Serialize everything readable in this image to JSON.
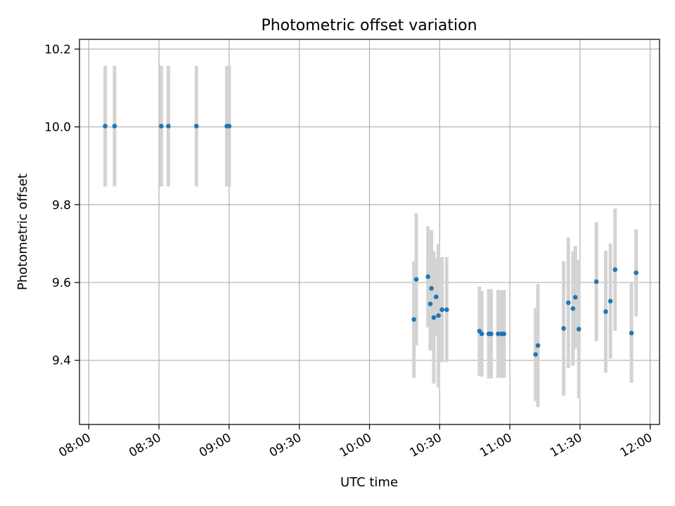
{
  "chart_data": {
    "type": "scatter",
    "title": "Photometric offset variation",
    "xlabel": "UTC time",
    "ylabel": "Photometric offset",
    "x_ticks": [
      "08:00",
      "08:30",
      "09:00",
      "09:30",
      "10:00",
      "10:30",
      "11:00",
      "11:30",
      "12:00"
    ],
    "y_ticks": [
      "9.4",
      "9.6",
      "9.8",
      "10.0",
      "10.2"
    ],
    "xlim": [
      "07:56",
      "12:04"
    ],
    "ylim": [
      9.235,
      10.225
    ],
    "grid": true,
    "colors": {
      "point": "#1f77b4",
      "errorbar": "#d3d3d3",
      "grid": "#b0b0b0"
    },
    "points": [
      {
        "x": "08:07",
        "y": 10.002,
        "err": 0.155
      },
      {
        "x": "08:11",
        "y": 10.002,
        "err": 0.155
      },
      {
        "x": "08:31",
        "y": 10.002,
        "err": 0.155
      },
      {
        "x": "08:34",
        "y": 10.002,
        "err": 0.155
      },
      {
        "x": "08:46",
        "y": 10.002,
        "err": 0.155
      },
      {
        "x": "08:59",
        "y": 10.002,
        "err": 0.155
      },
      {
        "x": "09:00",
        "y": 10.002,
        "err": 0.155
      },
      {
        "x": "10:19",
        "y": 9.505,
        "err": 0.15
      },
      {
        "x": "10:20",
        "y": 9.608,
        "err": 0.17
      },
      {
        "x": "10:25",
        "y": 9.615,
        "err": 0.13
      },
      {
        "x": "10:26",
        "y": 9.545,
        "err": 0.12
      },
      {
        "x": "10:26.5",
        "y": 9.585,
        "err": 0.15
      },
      {
        "x": "10:27.5",
        "y": 9.51,
        "err": 0.17
      },
      {
        "x": "10:28.5",
        "y": 9.563,
        "err": 0.1
      },
      {
        "x": "10:29.5",
        "y": 9.515,
        "err": 0.185
      },
      {
        "x": "10:31",
        "y": 9.53,
        "err": 0.135
      },
      {
        "x": "10:33",
        "y": 9.53,
        "err": 0.135
      },
      {
        "x": "10:47",
        "y": 9.475,
        "err": 0.115
      },
      {
        "x": "10:48",
        "y": 9.468,
        "err": 0.11
      },
      {
        "x": "10:51",
        "y": 9.468,
        "err": 0.115
      },
      {
        "x": "10:52",
        "y": 9.468,
        "err": 0.115
      },
      {
        "x": "10:55",
        "y": 9.468,
        "err": 0.113
      },
      {
        "x": "10:56.5",
        "y": 9.468,
        "err": 0.113
      },
      {
        "x": "10:57.5",
        "y": 9.468,
        "err": 0.113
      },
      {
        "x": "11:11",
        "y": 9.415,
        "err": 0.12
      },
      {
        "x": "11:12",
        "y": 9.438,
        "err": 0.158
      },
      {
        "x": "11:23",
        "y": 9.482,
        "err": 0.173
      },
      {
        "x": "11:25",
        "y": 9.548,
        "err": 0.168
      },
      {
        "x": "11:27",
        "y": 9.533,
        "err": 0.147
      },
      {
        "x": "11:28",
        "y": 9.562,
        "err": 0.132
      },
      {
        "x": "11:29.5",
        "y": 9.48,
        "err": 0.178
      },
      {
        "x": "11:37",
        "y": 9.602,
        "err": 0.153
      },
      {
        "x": "11:41",
        "y": 9.525,
        "err": 0.157
      },
      {
        "x": "11:43",
        "y": 9.552,
        "err": 0.148
      },
      {
        "x": "11:45",
        "y": 9.633,
        "err": 0.157
      },
      {
        "x": "11:52",
        "y": 9.47,
        "err": 0.128
      },
      {
        "x": "11:54",
        "y": 9.625,
        "err": 0.112
      }
    ]
  }
}
